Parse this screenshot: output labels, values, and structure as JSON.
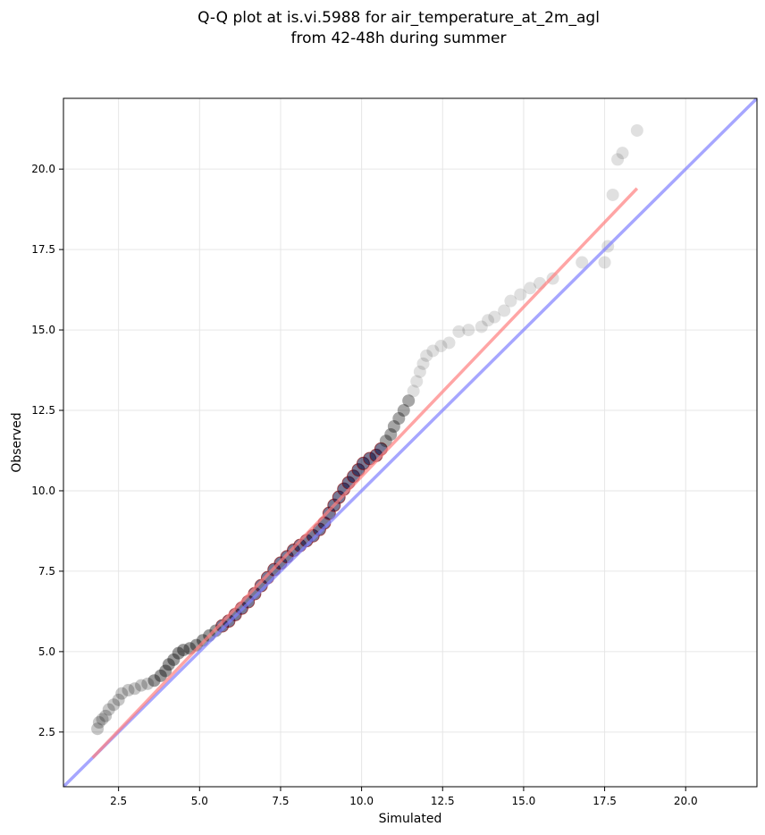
{
  "chart_data": {
    "type": "scatter",
    "title_lines": [
      "Q-Q plot at is.vi.5988 for air_temperature_at_2m_agl",
      "from 42-48h during summer"
    ],
    "xlabel": "Simulated",
    "ylabel": "Observed",
    "xlim": [
      0.8,
      22.2
    ],
    "ylim": [
      0.8,
      22.2
    ],
    "xticks": [
      2.5,
      5.0,
      7.5,
      10.0,
      12.5,
      15.0,
      17.5,
      20.0
    ],
    "yticks": [
      2.5,
      5.0,
      7.5,
      10.0,
      12.5,
      15.0,
      17.5,
      20.0
    ],
    "grid": true,
    "colors": {
      "points_outer": "#000000",
      "points_central": "#0a0a3a",
      "points_central_edge": "#8b0000",
      "fit_line": "#ff7f7f",
      "identity_line": "#8080ff",
      "grid": "#e6e6e6"
    },
    "identity_line": {
      "x": [
        0.8,
        22.2
      ],
      "y": [
        0.8,
        22.2
      ]
    },
    "fit_line": {
      "x": [
        1.7,
        18.5
      ],
      "y": [
        1.7,
        19.4
      ]
    },
    "quantile_points": [
      [
        1.85,
        2.6
      ],
      [
        1.9,
        2.8
      ],
      [
        2.0,
        2.9
      ],
      [
        2.1,
        3.0
      ],
      [
        2.2,
        3.2
      ],
      [
        2.35,
        3.35
      ],
      [
        2.5,
        3.5
      ],
      [
        2.6,
        3.7
      ],
      [
        2.8,
        3.8
      ],
      [
        3.0,
        3.85
      ],
      [
        3.2,
        3.95
      ],
      [
        3.4,
        4.0
      ],
      [
        3.6,
        4.1
      ],
      [
        3.8,
        4.25
      ],
      [
        3.95,
        4.4
      ],
      [
        4.05,
        4.6
      ],
      [
        4.2,
        4.75
      ],
      [
        4.35,
        4.95
      ],
      [
        4.5,
        5.05
      ],
      [
        4.7,
        5.1
      ],
      [
        4.9,
        5.2
      ],
      [
        5.1,
        5.35
      ],
      [
        5.3,
        5.5
      ],
      [
        5.5,
        5.65
      ],
      [
        5.7,
        5.8
      ],
      [
        5.9,
        5.95
      ],
      [
        6.1,
        6.15
      ],
      [
        6.3,
        6.35
      ],
      [
        6.5,
        6.55
      ],
      [
        6.7,
        6.8
      ],
      [
        6.9,
        7.05
      ],
      [
        7.1,
        7.3
      ],
      [
        7.3,
        7.55
      ],
      [
        7.5,
        7.75
      ],
      [
        7.7,
        7.95
      ],
      [
        7.9,
        8.15
      ],
      [
        8.1,
        8.3
      ],
      [
        8.3,
        8.45
      ],
      [
        8.5,
        8.6
      ],
      [
        8.7,
        8.8
      ],
      [
        8.85,
        9.0
      ],
      [
        9.0,
        9.3
      ],
      [
        9.15,
        9.55
      ],
      [
        9.3,
        9.8
      ],
      [
        9.45,
        10.05
      ],
      [
        9.6,
        10.25
      ],
      [
        9.75,
        10.45
      ],
      [
        9.9,
        10.65
      ],
      [
        10.05,
        10.85
      ],
      [
        10.25,
        11.0
      ],
      [
        10.45,
        11.1
      ],
      [
        10.6,
        11.3
      ],
      [
        10.75,
        11.55
      ],
      [
        10.9,
        11.75
      ],
      [
        11.0,
        12.0
      ],
      [
        11.15,
        12.25
      ],
      [
        11.3,
        12.5
      ],
      [
        11.45,
        12.8
      ],
      [
        11.6,
        13.1
      ],
      [
        11.7,
        13.4
      ],
      [
        11.8,
        13.7
      ],
      [
        11.9,
        13.95
      ],
      [
        12.0,
        14.2
      ],
      [
        12.2,
        14.35
      ],
      [
        12.45,
        14.5
      ],
      [
        12.7,
        14.6
      ],
      [
        13.0,
        14.95
      ],
      [
        13.3,
        15.0
      ],
      [
        13.7,
        15.1
      ],
      [
        13.9,
        15.3
      ],
      [
        14.1,
        15.4
      ],
      [
        14.4,
        15.6
      ],
      [
        14.6,
        15.9
      ],
      [
        14.9,
        16.1
      ],
      [
        15.2,
        16.3
      ],
      [
        15.5,
        16.45
      ],
      [
        15.9,
        16.6
      ],
      [
        16.8,
        17.1
      ],
      [
        17.5,
        17.1
      ],
      [
        17.6,
        17.6
      ],
      [
        17.75,
        19.2
      ],
      [
        17.9,
        20.3
      ],
      [
        18.05,
        20.5
      ],
      [
        18.5,
        21.2
      ]
    ]
  }
}
